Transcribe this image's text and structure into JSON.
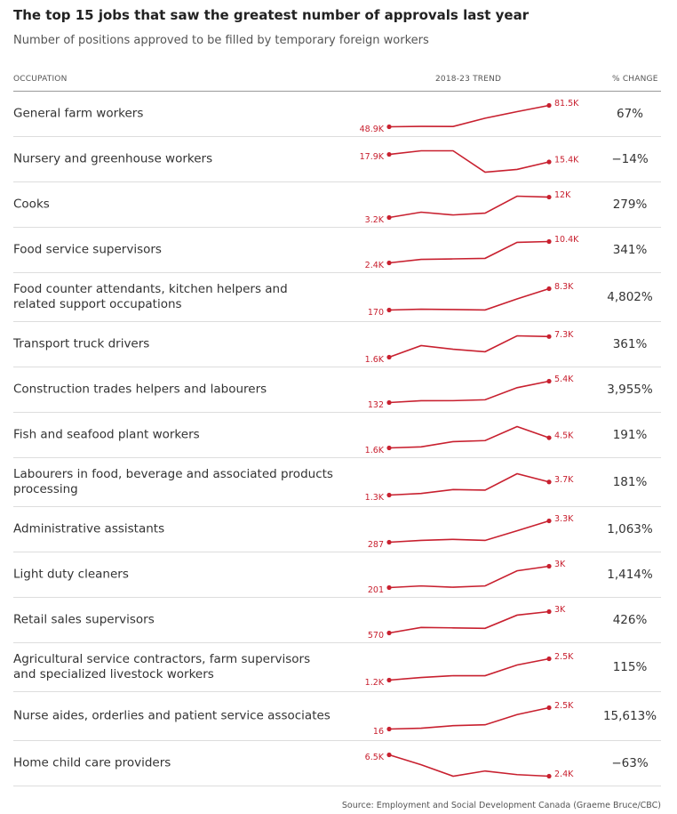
{
  "title": "The top 15 jobs that saw the greatest number of approvals last year",
  "subtitle": "Number of positions approved to be filled by temporary foreign workers",
  "columns": [
    "OCCUPATION",
    "2018-23 TREND",
    "% CHANGE"
  ],
  "line_color": "#c8202f",
  "rows": [
    {
      "occupation": "General farm workers",
      "trend": [
        48900,
        49500,
        49300,
        62000,
        72000,
        81500
      ],
      "trend_labels": [
        "48.9K",
        "81.5K"
      ],
      "change": "67%"
    },
    {
      "occupation": "Nursery and greenhouse workers",
      "trend": [
        17900,
        19100,
        19100,
        12000,
        12900,
        15400
      ],
      "trend_labels": [
        "17.9K",
        "15.4K"
      ],
      "change": "−14%"
    },
    {
      "occupation": "Cooks",
      "trend": [
        3200,
        5500,
        4300,
        5100,
        12400,
        12000
      ],
      "trend_labels": [
        "3.2K",
        "12K"
      ],
      "change": "279%"
    },
    {
      "occupation": "Food service supervisors",
      "trend": [
        2400,
        3700,
        3900,
        4100,
        10100,
        10400
      ],
      "trend_labels": [
        "2.4K",
        "10.4K"
      ],
      "change": "341%"
    },
    {
      "occupation": "Food counter attendants, kitchen helpers and related support occupations",
      "trend": [
        170,
        500,
        350,
        200,
        4400,
        8300
      ],
      "trend_labels": [
        "170",
        "8.3K"
      ],
      "change": "4,802%"
    },
    {
      "occupation": "Transport truck drivers",
      "trend": [
        1600,
        4800,
        3800,
        3100,
        7500,
        7300
      ],
      "trend_labels": [
        "1.6K",
        "7.3K"
      ],
      "change": "361%"
    },
    {
      "occupation": "Construction trades helpers and labourers",
      "trend": [
        132,
        590,
        600,
        820,
        3800,
        5400
      ],
      "trend_labels": [
        "132",
        "5.4K"
      ],
      "change": "3,955%"
    },
    {
      "occupation": "Fish and seafood plant workers",
      "trend": [
        1600,
        1900,
        3400,
        3700,
        7700,
        4500
      ],
      "trend_labels": [
        "1.6K",
        "4.5K"
      ],
      "change": "191%"
    },
    {
      "occupation": "Labourers in food, beverage and associated products processing",
      "trend": [
        1300,
        1600,
        2300,
        2200,
        5200,
        3700
      ],
      "trend_labels": [
        "1.3K",
        "3.7K"
      ],
      "change": "181%"
    },
    {
      "occupation": "Administrative assistants",
      "trend": [
        287,
        540,
        690,
        540,
        1900,
        3300
      ],
      "trend_labels": [
        "287",
        "3.3K"
      ],
      "change": "1,063%"
    },
    {
      "occupation": "Light duty cleaners",
      "trend": [
        201,
        420,
        250,
        420,
        2400,
        3000
      ],
      "trend_labels": [
        "201",
        "3K"
      ],
      "change": "1,414%"
    },
    {
      "occupation": "Retail sales supervisors",
      "trend": [
        570,
        1200,
        1150,
        1100,
        2600,
        3000
      ],
      "trend_labels": [
        "570",
        "3K"
      ],
      "change": "426%"
    },
    {
      "occupation": "Agricultural service contractors, farm supervisors and specialized livestock workers",
      "trend": [
        1200,
        1360,
        1470,
        1470,
        2120,
        2500
      ],
      "trend_labels": [
        "1.2K",
        "2.5K"
      ],
      "change": "115%"
    },
    {
      "occupation": "Nurse aides, orderlies and patient service associates",
      "trend": [
        16,
        115,
        410,
        510,
        1700,
        2500
      ],
      "trend_labels": [
        "16",
        "2.5K"
      ],
      "change": "15,613%"
    },
    {
      "occupation": "Home child care providers",
      "trend": [
        6500,
        4600,
        2400,
        3400,
        2700,
        2400
      ],
      "trend_labels": [
        "6.5K",
        "2.4K"
      ],
      "change": "−63%"
    }
  ],
  "source": "Source: Employment and Social Development Canada (Graeme Bruce/CBC)"
}
